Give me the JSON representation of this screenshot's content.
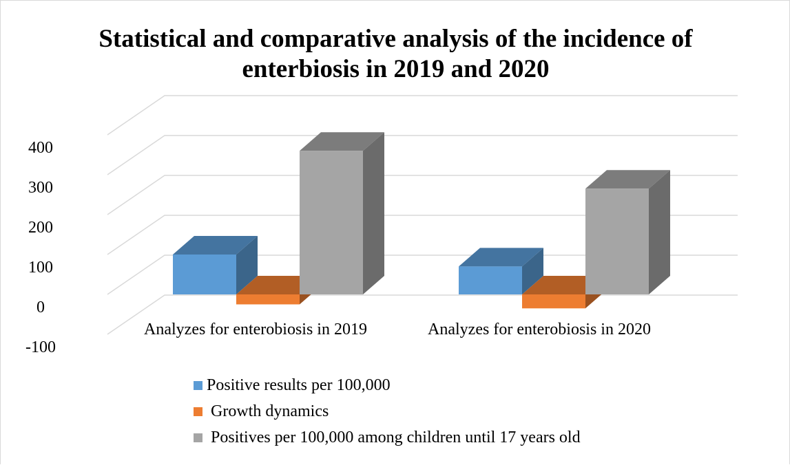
{
  "chart_data": {
    "type": "bar",
    "style": "3d-clustered-column",
    "title": "Statistical and comparative analysis of the incidence of\nenterbiosis in 2019 and 2020",
    "categories": [
      "Analyzes for enterobiosis in 2019",
      "Analyzes for enterobiosis in 2020"
    ],
    "series": [
      {
        "name": "Positive results per 100,000",
        "values": [
          100,
          70
        ],
        "color": "#5b9bd5"
      },
      {
        "name": "Growth dynamics",
        "values": [
          -25,
          -35
        ],
        "color": "#ed7d31"
      },
      {
        "name": "Positives per 100,000 among children until 17 years old",
        "values": [
          360,
          265
        ],
        "color": "#a5a5a5"
      }
    ],
    "yticks": [
      400,
      300,
      200,
      100,
      0,
      -100
    ],
    "ylim": [
      -100,
      400
    ],
    "grid": true,
    "legend_position": "bottom"
  }
}
